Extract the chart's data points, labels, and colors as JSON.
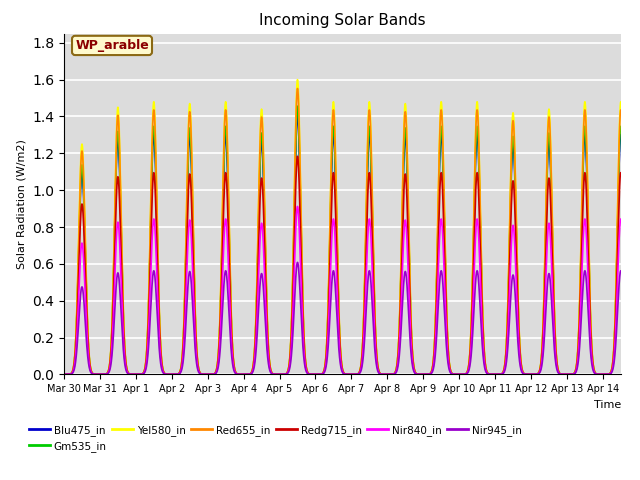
{
  "title": "Incoming Solar Bands",
  "xlabel": "Time",
  "ylabel": "Solar Radiation (W/m2)",
  "annotation_text": "WP_arable",
  "annotation_color": "#8B0000",
  "annotation_bg": "#FFFACD",
  "annotation_border": "#8B6914",
  "ylim": [
    0,
    1.85
  ],
  "yticks": [
    0.0,
    0.2,
    0.4,
    0.6,
    0.8,
    1.0,
    1.2,
    1.4,
    1.6,
    1.8
  ],
  "num_days": 16,
  "bg_color": "#DCDCDC",
  "grid_color": "white",
  "series": [
    {
      "name": "Blu475_in",
      "color": "#0000CC",
      "scale": 0.88,
      "lw": 1.2
    },
    {
      "name": "Gm535_in",
      "color": "#00CC00",
      "scale": 0.91,
      "lw": 1.2
    },
    {
      "name": "Yel580_in",
      "color": "#FFFF00",
      "scale": 1.0,
      "lw": 1.2
    },
    {
      "name": "Red655_in",
      "color": "#FF8800",
      "scale": 0.97,
      "lw": 1.2
    },
    {
      "name": "Redg715_in",
      "color": "#CC0000",
      "scale": 0.74,
      "lw": 1.2
    },
    {
      "name": "Nir840_in",
      "color": "#FF00FF",
      "scale": 0.57,
      "lw": 1.2
    },
    {
      "name": "Nir945_in",
      "color": "#9900CC",
      "scale": 0.38,
      "lw": 1.2
    }
  ],
  "day_labels": [
    "Mar 30",
    "Mar 31",
    "Apr 1",
    "Apr 2",
    "Apr 3",
    "Apr 4",
    "Apr 5",
    "Apr 6",
    "Apr 7",
    "Apr 8",
    "Apr 9",
    "Apr 10",
    "Apr 11",
    "Apr 12",
    "Apr 13",
    "Apr 14"
  ],
  "day_peaks": [
    1.25,
    1.45,
    1.48,
    1.47,
    1.48,
    1.44,
    1.6,
    1.48,
    1.48,
    1.47,
    1.48,
    1.48,
    1.42,
    1.44,
    1.48,
    1.48
  ],
  "sigma": 0.09,
  "points_per_day": 500
}
